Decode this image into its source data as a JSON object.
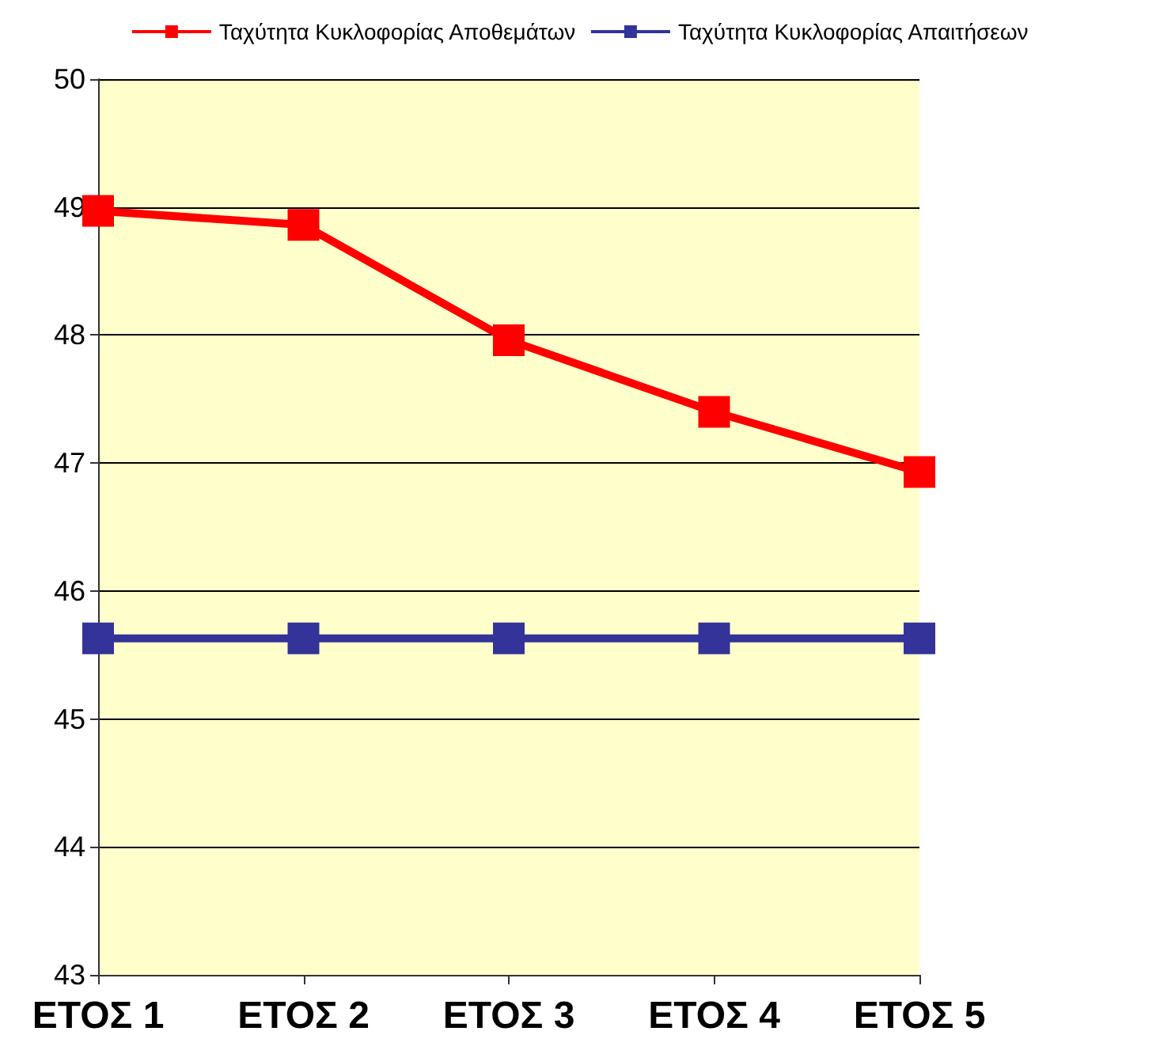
{
  "chart_data": {
    "type": "line",
    "categories": [
      "ΕΤΟΣ 1",
      "ΕΤΟΣ 2",
      "ΕΤΟΣ 3",
      "ΕΤΟΣ 4",
      "ΕΤΟΣ 5"
    ],
    "series": [
      {
        "name": "Ταχύτητα Κυκλοφορίας Αποθεμάτων",
        "color": "#ff0000",
        "values": [
          48.97,
          48.86,
          47.96,
          47.4,
          46.93
        ]
      },
      {
        "name": "Ταχύτητα Κυκλοφορίας Απαιτήσεων",
        "color": "#333399",
        "values": [
          45.63,
          45.63,
          45.63,
          45.63,
          45.63
        ]
      }
    ],
    "ylim": [
      43,
      50
    ],
    "yticks": [
      43,
      44,
      45,
      46,
      47,
      48,
      49,
      50
    ],
    "grid": "y",
    "legend": "top",
    "marker": "square",
    "line_style": "solid"
  }
}
